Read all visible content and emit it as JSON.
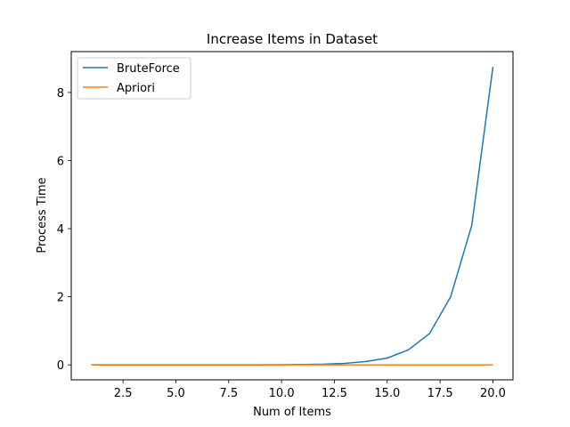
{
  "chart_data": {
    "type": "line",
    "title": "Increase Items in Dataset",
    "xlabel": "Num of Items",
    "ylabel": "Process Time",
    "xlim": [
      0.05,
      20.95
    ],
    "ylim": [
      -0.44,
      9.2
    ],
    "xticks": [
      2.5,
      5.0,
      7.5,
      10.0,
      12.5,
      15.0,
      17.5,
      20.0
    ],
    "xtick_labels": [
      "2.5",
      "5.0",
      "7.5",
      "10.0",
      "12.5",
      "15.0",
      "17.5",
      "20.0"
    ],
    "yticks": [
      0,
      2,
      4,
      6,
      8
    ],
    "ytick_labels": [
      "0",
      "2",
      "4",
      "6",
      "8"
    ],
    "grid": false,
    "legend_position": "top-left",
    "x": [
      1,
      2,
      3,
      4,
      5,
      6,
      7,
      8,
      9,
      10,
      11,
      12,
      13,
      14,
      15,
      16,
      17,
      18,
      19,
      20
    ],
    "series": [
      {
        "name": "BruteForce",
        "color": "#1f77b4",
        "values": [
          0.0,
          0.0,
          0.0,
          0.0,
          0.0,
          0.0,
          0.0,
          0.0,
          0.0,
          0.005,
          0.01,
          0.02,
          0.045,
          0.1,
          0.2,
          0.44,
          0.92,
          2.0,
          4.1,
          8.75
        ]
      },
      {
        "name": "Apriori",
        "color": "#ff7f0e",
        "values": [
          0.0,
          0.0,
          0.0,
          0.0,
          0.0,
          0.0,
          0.0,
          0.0,
          0.0,
          0.0,
          0.0,
          0.0,
          0.0,
          0.0,
          0.0,
          0.0,
          0.0,
          0.0,
          0.0,
          0.0
        ]
      }
    ]
  }
}
